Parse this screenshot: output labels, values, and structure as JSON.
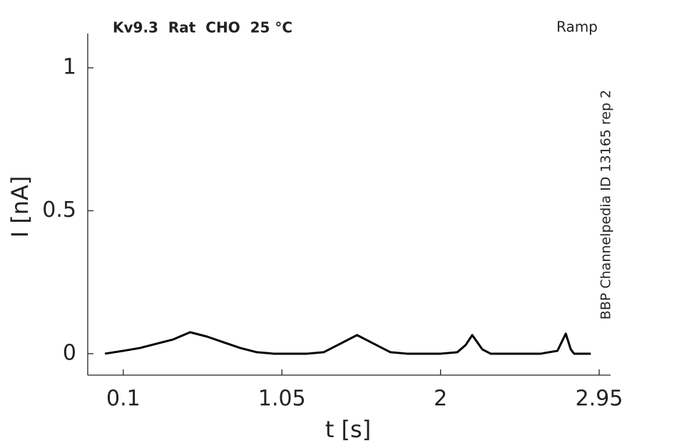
{
  "chart_data": {
    "type": "line",
    "title": "Kv9.3  Rat  CHO  25 °C",
    "subtitle": "Ramp",
    "annotation": "BBP Channelpedia ID 13165 rep 2",
    "x_label": "t [s]",
    "y_label": "I [nA]",
    "x": [
      -0.01,
      0.1,
      0.2,
      0.3,
      0.4,
      0.5,
      0.6,
      0.7,
      0.8,
      0.9,
      1.0,
      1.1,
      1.2,
      1.3,
      1.4,
      1.5,
      1.6,
      1.7,
      1.8,
      1.9,
      2.0,
      2.1,
      2.15,
      2.19,
      2.25,
      2.3,
      2.4,
      2.5,
      2.6,
      2.7,
      2.75,
      2.78,
      2.8,
      2.9
    ],
    "values": [
      0,
      0.01,
      0.02,
      0.035,
      0.05,
      0.075,
      0.06,
      0.04,
      0.02,
      0.005,
      0,
      0,
      0,
      0.005,
      0.035,
      0.065,
      0.035,
      0.005,
      0,
      0,
      0,
      0.005,
      0.03,
      0.065,
      0.015,
      0,
      0,
      0,
      0,
      0.01,
      0.07,
      0.015,
      0,
      0
    ],
    "color": "#000000",
    "xlim": [
      -0.113,
      3.018
    ],
    "ylim": [
      -0.075,
      1.12
    ],
    "xticks": [
      0.1,
      1.05,
      2,
      2.95
    ],
    "yticks": [
      0,
      0.5,
      1
    ],
    "grid": false
  }
}
